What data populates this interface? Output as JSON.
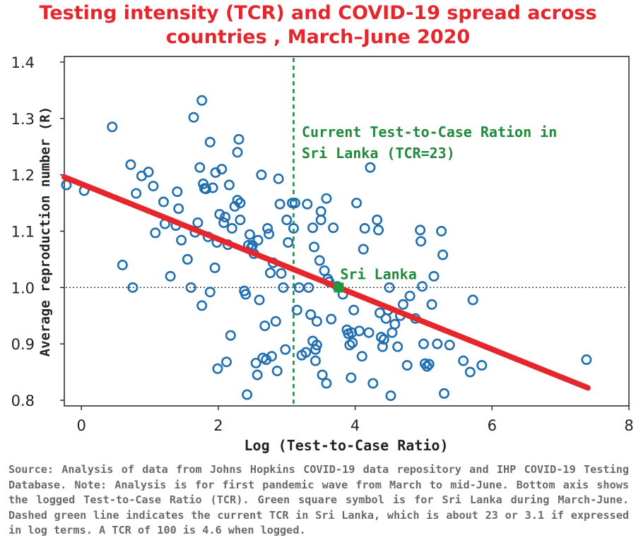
{
  "title_line1": "Testing intensity (TCR) and COVID-19 spread across",
  "title_line2": "countries , March–June 2020",
  "source": "Source: Analysis of data from Johns Hopkins COVID-19 data repository and IHP COVID-19 Testing Database. Note: Analysis is for first pandemic wave from March to mid-June. Bottom axis shows the logged Test-to-Case Ratio (TCR). Green square symbol is for Sri Lanka during March-June. Dashed green line indicates the current TCR in Sri Lanka, which is about 23 or 3.1 if expressed in log terms. A TCR of 100 is 4.6 when logged.",
  "colors": {
    "title": "#e5262d",
    "points": "#1f6fb2",
    "fit_line": "#e5262d",
    "srilanka": "#1e9a3a",
    "refline": "#1e8a3a",
    "source": "#6a6a6a"
  },
  "chart_data": {
    "type": "scatter",
    "title": "Testing intensity (TCR) and COVID-19 spread across countries , March–June 2020",
    "xlabel": "Log (Test-to-Case Ratio)",
    "ylabel": "Average reproduction number (R)",
    "xlim": [
      -0.25,
      8.0
    ],
    "ylim": [
      0.79,
      1.41
    ],
    "xticks": [
      "0",
      "2",
      "4",
      "6",
      "8"
    ],
    "yticks": [
      "0.8",
      "0.9",
      "1.0",
      "1.1",
      "1.2",
      "1.3",
      "1.4"
    ],
    "grid": false,
    "points": [
      [
        -0.22,
        1.182
      ],
      [
        0.04,
        1.172
      ],
      [
        0.45,
        1.285
      ],
      [
        0.6,
        1.04
      ],
      [
        0.72,
        1.218
      ],
      [
        0.75,
        1.0
      ],
      [
        0.8,
        1.167
      ],
      [
        0.88,
        1.198
      ],
      [
        0.98,
        1.205
      ],
      [
        1.05,
        1.18
      ],
      [
        1.08,
        1.097
      ],
      [
        1.2,
        1.152
      ],
      [
        1.22,
        1.113
      ],
      [
        1.3,
        1.02
      ],
      [
        1.38,
        1.11
      ],
      [
        1.4,
        1.17
      ],
      [
        1.42,
        1.14
      ],
      [
        1.46,
        1.084
      ],
      [
        1.55,
        1.05
      ],
      [
        1.6,
        1.0
      ],
      [
        1.64,
        1.302
      ],
      [
        1.66,
        1.098
      ],
      [
        1.7,
        1.115
      ],
      [
        1.73,
        1.213
      ],
      [
        1.76,
        1.332
      ],
      [
        1.76,
        0.968
      ],
      [
        1.78,
        1.184
      ],
      [
        1.8,
        1.176
      ],
      [
        1.82,
        1.175
      ],
      [
        1.85,
        1.09
      ],
      [
        1.88,
        1.258
      ],
      [
        1.88,
        0.992
      ],
      [
        1.92,
        1.177
      ],
      [
        1.95,
        1.035
      ],
      [
        1.96,
        1.204
      ],
      [
        1.98,
        1.08
      ],
      [
        1.99,
        0.856
      ],
      [
        2.02,
        1.13
      ],
      [
        2.05,
        1.21
      ],
      [
        2.08,
        1.115
      ],
      [
        2.1,
        1.125
      ],
      [
        2.12,
        0.868
      ],
      [
        2.14,
        1.076
      ],
      [
        2.16,
        1.182
      ],
      [
        2.18,
        0.915
      ],
      [
        2.2,
        1.105
      ],
      [
        2.24,
        1.144
      ],
      [
        2.28,
        1.155
      ],
      [
        2.28,
        1.24
      ],
      [
        2.3,
        1.263
      ],
      [
        2.32,
        1.12
      ],
      [
        2.32,
        1.15
      ],
      [
        2.38,
        0.994
      ],
      [
        2.4,
        0.988
      ],
      [
        2.42,
        0.81
      ],
      [
        2.44,
        1.075
      ],
      [
        2.46,
        1.094
      ],
      [
        2.48,
        1.07
      ],
      [
        2.5,
        1.075
      ],
      [
        2.52,
        1.06
      ],
      [
        2.55,
        0.866
      ],
      [
        2.57,
        0.845
      ],
      [
        2.58,
        1.084
      ],
      [
        2.6,
        0.978
      ],
      [
        2.63,
        1.2
      ],
      [
        2.65,
        0.875
      ],
      [
        2.68,
        0.932
      ],
      [
        2.7,
        0.872
      ],
      [
        2.72,
        1.105
      ],
      [
        2.74,
        1.095
      ],
      [
        2.76,
        1.026
      ],
      [
        2.78,
        0.878
      ],
      [
        2.8,
        1.044
      ],
      [
        2.84,
        0.94
      ],
      [
        2.86,
        0.852
      ],
      [
        2.88,
        1.193
      ],
      [
        2.9,
        1.148
      ],
      [
        2.92,
        1.025
      ],
      [
        2.95,
        1.0
      ],
      [
        2.98,
        0.89
      ],
      [
        3.0,
        1.12
      ],
      [
        3.02,
        1.08
      ],
      [
        3.08,
        1.15
      ],
      [
        3.1,
        1.105
      ],
      [
        3.12,
        1.15
      ],
      [
        3.15,
        0.96
      ],
      [
        3.18,
        1.0
      ],
      [
        3.22,
        0.88
      ],
      [
        3.28,
        0.885
      ],
      [
        3.3,
        1.148
      ],
      [
        3.32,
        1.0
      ],
      [
        3.35,
        0.952
      ],
      [
        3.38,
        0.905
      ],
      [
        3.38,
        1.106
      ],
      [
        3.4,
        1.072
      ],
      [
        3.42,
        0.87
      ],
      [
        3.42,
        0.89
      ],
      [
        3.44,
        0.898
      ],
      [
        3.44,
        0.94
      ],
      [
        3.48,
        1.048
      ],
      [
        3.5,
        1.12
      ],
      [
        3.5,
        1.135
      ],
      [
        3.52,
        0.845
      ],
      [
        3.55,
        1.03
      ],
      [
        3.58,
        0.83
      ],
      [
        3.58,
        1.158
      ],
      [
        3.6,
        1.015
      ],
      [
        3.62,
        1.01
      ],
      [
        3.65,
        0.944
      ],
      [
        3.68,
        1.106
      ],
      [
        3.74,
        1.002
      ],
      [
        3.82,
        0.988
      ],
      [
        3.88,
        0.925
      ],
      [
        3.9,
        0.918
      ],
      [
        3.92,
        0.898
      ],
      [
        3.94,
        0.84
      ],
      [
        3.95,
        0.92
      ],
      [
        3.96,
        0.902
      ],
      [
        3.98,
        0.96
      ],
      [
        4.02,
        1.15
      ],
      [
        4.06,
        0.923
      ],
      [
        4.1,
        0.878
      ],
      [
        4.12,
        1.068
      ],
      [
        4.14,
        1.105
      ],
      [
        4.2,
        0.92
      ],
      [
        4.22,
        1.213
      ],
      [
        4.26,
        0.83
      ],
      [
        4.32,
        1.12
      ],
      [
        4.34,
        1.102
      ],
      [
        4.36,
        0.955
      ],
      [
        4.38,
        0.912
      ],
      [
        4.4,
        0.895
      ],
      [
        4.42,
        0.908
      ],
      [
        4.45,
        0.945
      ],
      [
        4.48,
        0.96
      ],
      [
        4.5,
        1.0
      ],
      [
        4.52,
        0.808
      ],
      [
        4.54,
        0.92
      ],
      [
        4.58,
        0.935
      ],
      [
        4.62,
        0.895
      ],
      [
        4.66,
        0.95
      ],
      [
        4.7,
        0.97
      ],
      [
        4.76,
        0.862
      ],
      [
        4.8,
        0.985
      ],
      [
        4.88,
        0.945
      ],
      [
        4.95,
        1.102
      ],
      [
        4.96,
        1.082
      ],
      [
        4.98,
        1.002
      ],
      [
        5.0,
        0.9
      ],
      [
        5.02,
        0.865
      ],
      [
        5.05,
        0.86
      ],
      [
        5.08,
        0.864
      ],
      [
        5.12,
        0.97
      ],
      [
        5.15,
        1.02
      ],
      [
        5.2,
        0.9
      ],
      [
        5.26,
        1.1
      ],
      [
        5.28,
        1.058
      ],
      [
        5.3,
        0.812
      ],
      [
        5.38,
        0.898
      ],
      [
        5.58,
        0.87
      ],
      [
        5.68,
        0.85
      ],
      [
        5.72,
        0.978
      ],
      [
        5.85,
        0.862
      ],
      [
        7.38,
        0.872
      ]
    ],
    "fit_line": {
      "x": [
        -0.25,
        7.4
      ],
      "y": [
        1.196,
        0.822
      ]
    },
    "reference_lines": [
      {
        "orientation": "vertical",
        "x": 3.1,
        "style": "dashed",
        "label": "Current Test-to-Case Ration in Sri Lanka (TCR=23)"
      },
      {
        "orientation": "horizontal",
        "y": 1.0,
        "style": "dotted"
      }
    ],
    "highlight": {
      "label": "Sri Lanka",
      "x": 3.76,
      "y": 1.0,
      "marker": "square"
    }
  }
}
